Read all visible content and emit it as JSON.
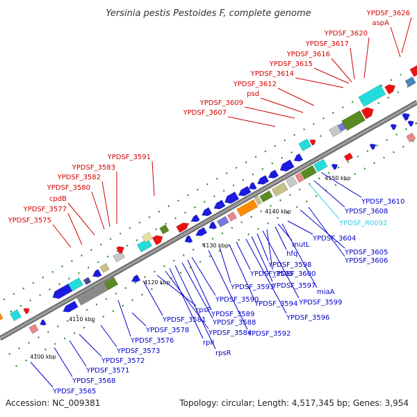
{
  "title": "Yersinia pestis Pestoides F, complete genome",
  "footer": {
    "accession": "Accession: NC_009381",
    "topology": "Topology: circular; Length: 4,517,345 bp; Genes: 3,954"
  },
  "colors": {
    "top_labels": "#d00000",
    "bottom_labels": "#0000c8",
    "rna_label": "#40c8e8",
    "backbone": "#808080"
  },
  "ticks": [
    "4100 kbp",
    "4110 kbp",
    "4120 kbp",
    "4130 kbp",
    "4140 kbp",
    "4150 kbp"
  ],
  "top_labels": [
    "YPDSF_3575",
    "YPDSF_3577",
    "cpdB",
    "YPDSF_3580",
    "YPDSF_3582",
    "YPDSF_3583",
    "YPDSF_3591",
    "YPDSF_3607",
    "YPDSF_3609",
    "psd",
    "YPDSF_3612",
    "YPDSF_3614",
    "YPDSF_3615",
    "YPDSF_3616",
    "YPDSF_3617",
    "YPDSF_3620",
    "aspA",
    "YPDSF_3626"
  ],
  "bottom_labels": [
    "YPDSF_3565",
    "YPDSF_3568",
    "YPDSF_3571",
    "YPDSF_3572",
    "YPDSF_3573",
    "YPDSF_3576",
    "YPDSF_3578",
    "YPDSF_3581",
    "rpsF",
    "YPDSF_3584",
    "rplI",
    "rpsR",
    "YPDSF_3588",
    "YPDSF_3589",
    "YPDSF_3590",
    "YPDSF_3592",
    "YPDSF_3593",
    "YPDSF_3594",
    "YPDSF_3595",
    "YPDSF_3596",
    "YPDSF_3597",
    "YPDSF_3598",
    "YPDSF_3599",
    "YPDSF_3600",
    "miaA",
    "hfq",
    "mutL",
    "YPDSF_3604",
    "YPDSF_3605",
    "YPDSF_3606",
    "YPDSF_R0092",
    "YPDSF_3608",
    "YPDSF_3610"
  ]
}
